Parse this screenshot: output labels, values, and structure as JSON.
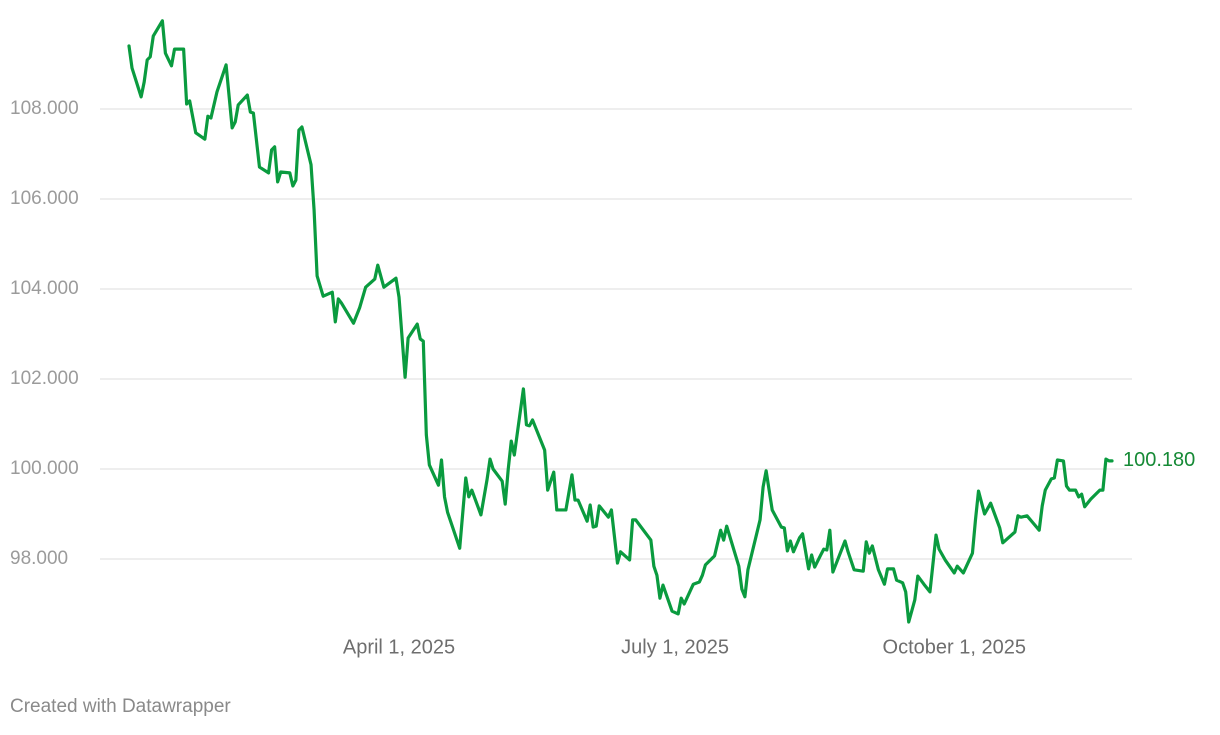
{
  "chart_data": {
    "type": "line",
    "credit": "Created with Datawrapper",
    "color": "#0a9b3f",
    "label_color": "#168a36",
    "grid": true,
    "ylim": [
      96.4,
      110
    ],
    "yticks": [
      {
        "value": 98,
        "label": "98.000"
      },
      {
        "value": 100,
        "label": "100.000"
      },
      {
        "value": 102,
        "label": "102.000"
      },
      {
        "value": 104,
        "label": "104.000"
      },
      {
        "value": 106,
        "label": "106.000"
      },
      {
        "value": 108,
        "label": "108.000"
      }
    ],
    "xlim": [
      "2025-01-02",
      "2025-11-22"
    ],
    "xticks": [
      {
        "value": "2025-04-01",
        "label": "April 1, 2025"
      },
      {
        "value": "2025-07-01",
        "label": "July 1, 2025"
      },
      {
        "value": "2025-10-01",
        "label": "October 1, 2025"
      }
    ],
    "x": [
      "2025-01-02",
      "2025-01-03",
      "2025-01-06",
      "2025-01-07",
      "2025-01-08",
      "2025-01-09",
      "2025-01-10",
      "2025-01-13",
      "2025-01-14",
      "2025-01-16",
      "2025-01-17",
      "2025-01-20",
      "2025-01-21",
      "2025-01-22",
      "2025-01-24",
      "2025-01-27",
      "2025-01-28",
      "2025-01-29",
      "2025-01-31",
      "2025-02-03",
      "2025-02-05",
      "2025-02-06",
      "2025-02-07",
      "2025-02-10",
      "2025-02-11",
      "2025-02-12",
      "2025-02-14",
      "2025-02-17",
      "2025-02-18",
      "2025-02-19",
      "2025-02-20",
      "2025-02-21",
      "2025-02-24",
      "2025-02-25",
      "2025-02-26",
      "2025-02-27",
      "2025-02-28",
      "2025-03-03",
      "2025-03-04",
      "2025-03-05",
      "2025-03-07",
      "2025-03-10",
      "2025-03-11",
      "2025-03-12",
      "2025-03-13",
      "2025-03-17",
      "2025-03-19",
      "2025-03-21",
      "2025-03-24",
      "2025-03-25",
      "2025-03-27",
      "2025-03-31",
      "2025-04-01",
      "2025-04-03",
      "2025-04-04",
      "2025-04-07",
      "2025-04-08",
      "2025-04-09",
      "2025-04-10",
      "2025-04-11",
      "2025-04-14",
      "2025-04-15",
      "2025-04-16",
      "2025-04-17",
      "2025-04-21",
      "2025-04-23",
      "2025-04-24",
      "2025-04-25",
      "2025-04-28",
      "2025-04-30",
      "2025-05-01",
      "2025-05-02",
      "2025-05-05",
      "2025-05-06",
      "2025-05-07",
      "2025-05-08",
      "2025-05-09",
      "2025-05-12",
      "2025-05-13",
      "2025-05-14",
      "2025-05-15",
      "2025-05-19",
      "2025-05-20",
      "2025-05-22",
      "2025-05-23",
      "2025-05-26",
      "2025-05-28",
      "2025-05-29",
      "2025-05-30",
      "2025-06-02",
      "2025-06-03",
      "2025-06-04",
      "2025-06-05",
      "2025-06-06",
      "2025-06-09",
      "2025-06-10",
      "2025-06-12",
      "2025-06-13",
      "2025-06-16",
      "2025-06-17",
      "2025-06-18",
      "2025-06-23",
      "2025-06-24",
      "2025-06-25",
      "2025-06-26",
      "2025-06-27",
      "2025-06-30",
      "2025-07-02",
      "2025-07-03",
      "2025-07-04",
      "2025-07-07",
      "2025-07-09",
      "2025-07-10",
      "2025-07-11",
      "2025-07-14",
      "2025-07-16",
      "2025-07-17",
      "2025-07-18",
      "2025-07-22",
      "2025-07-23",
      "2025-07-24",
      "2025-07-25",
      "2025-07-29",
      "2025-07-30",
      "2025-07-31",
      "2025-08-02",
      "2025-08-05",
      "2025-08-06",
      "2025-08-07",
      "2025-08-08",
      "2025-08-09",
      "2025-08-11",
      "2025-08-12",
      "2025-08-14",
      "2025-08-15",
      "2025-08-16",
      "2025-08-18",
      "2025-08-19",
      "2025-08-20",
      "2025-08-21",
      "2025-08-22",
      "2025-08-26",
      "2025-08-27",
      "2025-08-29",
      "2025-09-01",
      "2025-09-02",
      "2025-09-03",
      "2025-09-04",
      "2025-09-06",
      "2025-09-08",
      "2025-09-09",
      "2025-09-11",
      "2025-09-12",
      "2025-09-14",
      "2025-09-15",
      "2025-09-16",
      "2025-09-18",
      "2025-09-19",
      "2025-09-21",
      "2025-09-23",
      "2025-09-25",
      "2025-09-26",
      "2025-09-28",
      "2025-10-01",
      "2025-10-02",
      "2025-10-04",
      "2025-10-07",
      "2025-10-08",
      "2025-10-09",
      "2025-10-11",
      "2025-10-13",
      "2025-10-16",
      "2025-10-17",
      "2025-10-21",
      "2025-10-22",
      "2025-10-23",
      "2025-10-25",
      "2025-10-27",
      "2025-10-29",
      "2025-10-30",
      "2025-10-31",
      "2025-11-02",
      "2025-11-03",
      "2025-11-04",
      "2025-11-06",
      "2025-11-07",
      "2025-11-08",
      "2025-11-10",
      "2025-11-11",
      "2025-11-12",
      "2025-11-13",
      "2025-11-15",
      "2025-11-18",
      "2025-11-19",
      "2025-11-20",
      "2025-11-21",
      "2025-11-22"
    ],
    "values": [
      109.4,
      108.91,
      108.27,
      108.6,
      109.09,
      109.16,
      109.62,
      109.96,
      109.24,
      108.96,
      109.33,
      109.33,
      108.11,
      108.18,
      107.47,
      107.33,
      107.84,
      107.8,
      108.38,
      108.98,
      107.58,
      107.71,
      108.09,
      108.31,
      107.93,
      107.91,
      106.71,
      106.58,
      107.09,
      107.16,
      106.38,
      106.6,
      106.58,
      106.29,
      106.42,
      107.53,
      107.6,
      106.76,
      105.76,
      104.29,
      103.84,
      103.93,
      103.27,
      103.78,
      103.69,
      103.24,
      103.58,
      104.04,
      104.22,
      104.53,
      104.04,
      104.24,
      103.82,
      102.04,
      102.91,
      103.22,
      102.89,
      102.84,
      100.76,
      100.09,
      99.64,
      100.2,
      99.38,
      99.04,
      98.24,
      99.8,
      99.38,
      99.53,
      98.98,
      99.76,
      100.22,
      100.0,
      99.73,
      99.22,
      100.0,
      100.62,
      100.31,
      101.78,
      100.98,
      100.96,
      101.09,
      100.42,
      99.53,
      99.93,
      99.09,
      99.09,
      99.87,
      99.31,
      99.31,
      98.84,
      99.2,
      98.71,
      98.73,
      99.18,
      98.93,
      99.09,
      97.91,
      98.16,
      97.98,
      98.87,
      98.87,
      98.42,
      97.84,
      97.64,
      97.13,
      97.42,
      96.84,
      96.78,
      97.13,
      97.0,
      97.44,
      97.49,
      97.64,
      97.87,
      98.07,
      98.64,
      98.42,
      98.73,
      97.84,
      97.33,
      97.16,
      97.76,
      98.87,
      99.6,
      99.96,
      99.09,
      98.71,
      98.69,
      98.18,
      98.4,
      98.16,
      98.47,
      98.56,
      97.78,
      98.09,
      97.82,
      98.09,
      98.22,
      98.2,
      98.64,
      97.71,
      98.4,
      98.16,
      97.76,
      97.73,
      98.38,
      98.13,
      98.29,
      97.76,
      97.44,
      97.78,
      97.78,
      97.53,
      97.47,
      97.27,
      96.6,
      97.09,
      97.62,
      97.44,
      97.27,
      98.53,
      98.22,
      97.98,
      97.69,
      97.84,
      97.69,
      98.13,
      98.87,
      99.51,
      99.0,
      99.24,
      98.69,
      98.36,
      98.6,
      98.96,
      98.93,
      98.96,
      98.8,
      98.64,
      99.18,
      99.53,
      99.78,
      99.8,
      100.2,
      100.18,
      99.62,
      99.53,
      99.53,
      99.38,
      99.44,
      99.16,
      99.33,
      99.53,
      99.53,
      100.22,
      100.18,
      100.18
    ],
    "value_labels": [
      null,
      null,
      null,
      null,
      null,
      null,
      null,
      null,
      null,
      null,
      null,
      null,
      null,
      null,
      null,
      null,
      null,
      null,
      null,
      null,
      null,
      null,
      null,
      null,
      null,
      null,
      null,
      null,
      null,
      null,
      null,
      null,
      null,
      null,
      null,
      null,
      null,
      null,
      null,
      null,
      null,
      null,
      null,
      null,
      null,
      null,
      null,
      null,
      null,
      null,
      null,
      null,
      null,
      null,
      null,
      null,
      null,
      null,
      null,
      null,
      null,
      null,
      null,
      null,
      null,
      null,
      null,
      null,
      null,
      null,
      null,
      null,
      null,
      null,
      null,
      null,
      null,
      null,
      null,
      null,
      null,
      null,
      null,
      null,
      null,
      null,
      null,
      null,
      null,
      null,
      null,
      null,
      null,
      null,
      null,
      null,
      null,
      null,
      null,
      null,
      null,
      null,
      null,
      null,
      null,
      null,
      null,
      null,
      null,
      null,
      null,
      null,
      null,
      null,
      null,
      null,
      null,
      null,
      null,
      null,
      null,
      null,
      null,
      null,
      null,
      null,
      null,
      null,
      null,
      null,
      null,
      null,
      null,
      null,
      null,
      null,
      null,
      null,
      null,
      null,
      null,
      null,
      null,
      null,
      null,
      null,
      null,
      null,
      null,
      null,
      null,
      null,
      null,
      null,
      null,
      null,
      null,
      null,
      null,
      null,
      null,
      null,
      null,
      null,
      null,
      null,
      null,
      null,
      null,
      null,
      null,
      null,
      null,
      null,
      null,
      null,
      null,
      null,
      null,
      null,
      null,
      null,
      null,
      null,
      null,
      null,
      null,
      null,
      null,
      null,
      null,
      null,
      null,
      null,
      null,
      null,
      "100.180"
    ]
  }
}
